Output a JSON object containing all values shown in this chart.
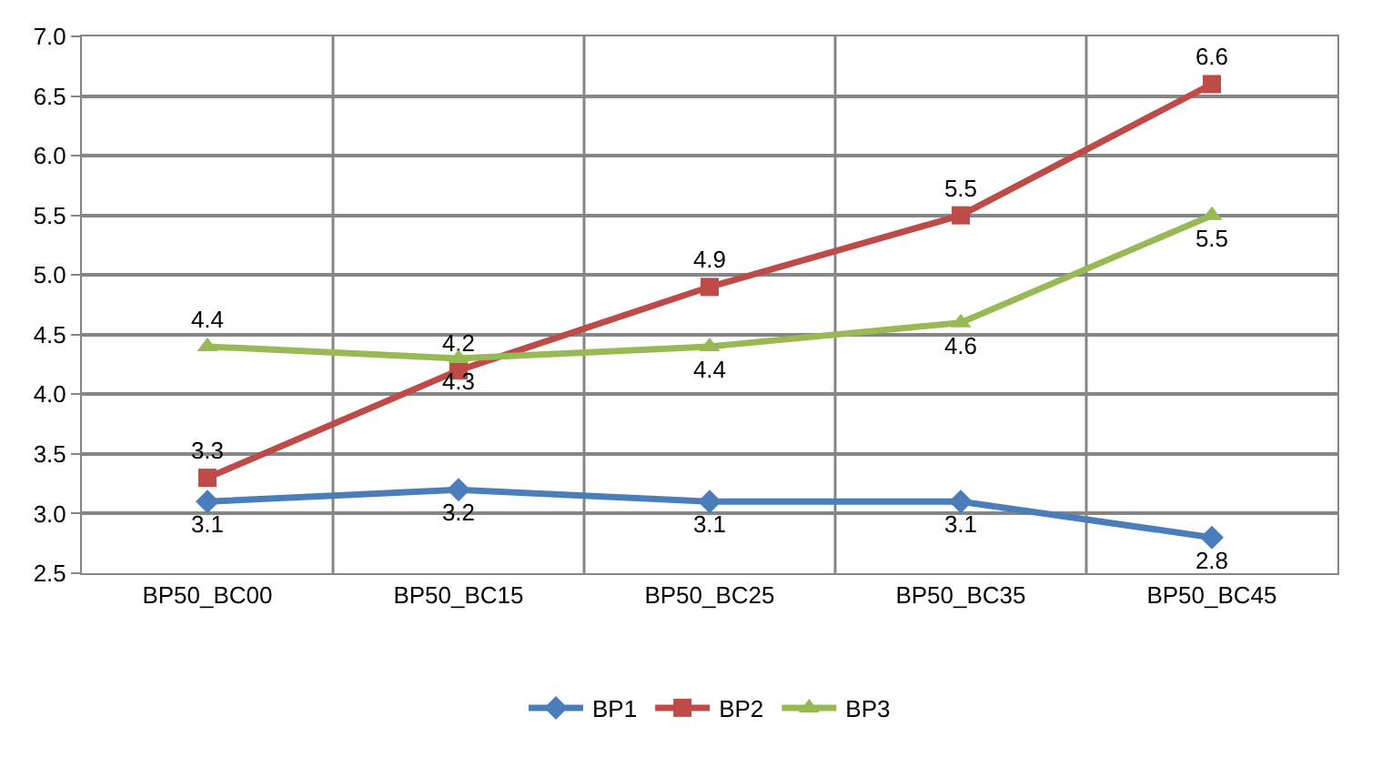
{
  "chart_data": {
    "type": "line",
    "categories": [
      "BP50_BC00",
      "BP50_BC15",
      "BP50_BC25",
      "BP50_BC35",
      "BP50_BC45"
    ],
    "series": [
      {
        "name": "BP1",
        "color": "#4a7ebb",
        "values": [
          3.1,
          3.2,
          3.1,
          3.1,
          2.8
        ],
        "marker": "diamond"
      },
      {
        "name": "BP2",
        "color": "#be4b48",
        "values": [
          3.3,
          4.2,
          4.9,
          5.5,
          6.6
        ],
        "marker": "square"
      },
      {
        "name": "BP3",
        "color": "#98b954",
        "values": [
          4.4,
          4.3,
          4.4,
          4.6,
          5.5
        ],
        "marker": "triangle"
      }
    ],
    "ylim": [
      2.5,
      7.0
    ],
    "yticks": [
      {
        "value": 2.5,
        "label": "2.5"
      },
      {
        "value": 3.0,
        "label": "3.0"
      },
      {
        "value": 3.5,
        "label": "3.5"
      },
      {
        "value": 4.0,
        "label": "4.0"
      },
      {
        "value": 4.5,
        "label": "4.5"
      },
      {
        "value": 5.0,
        "label": "5.0"
      },
      {
        "value": 5.5,
        "label": "5.5"
      },
      {
        "value": 6.0,
        "label": "6.0"
      },
      {
        "value": 6.5,
        "label": "6.5"
      },
      {
        "value": 7.0,
        "label": "7.0"
      }
    ],
    "grid": true,
    "legend": "bottom",
    "data_labels": true,
    "line_style": "solid"
  }
}
